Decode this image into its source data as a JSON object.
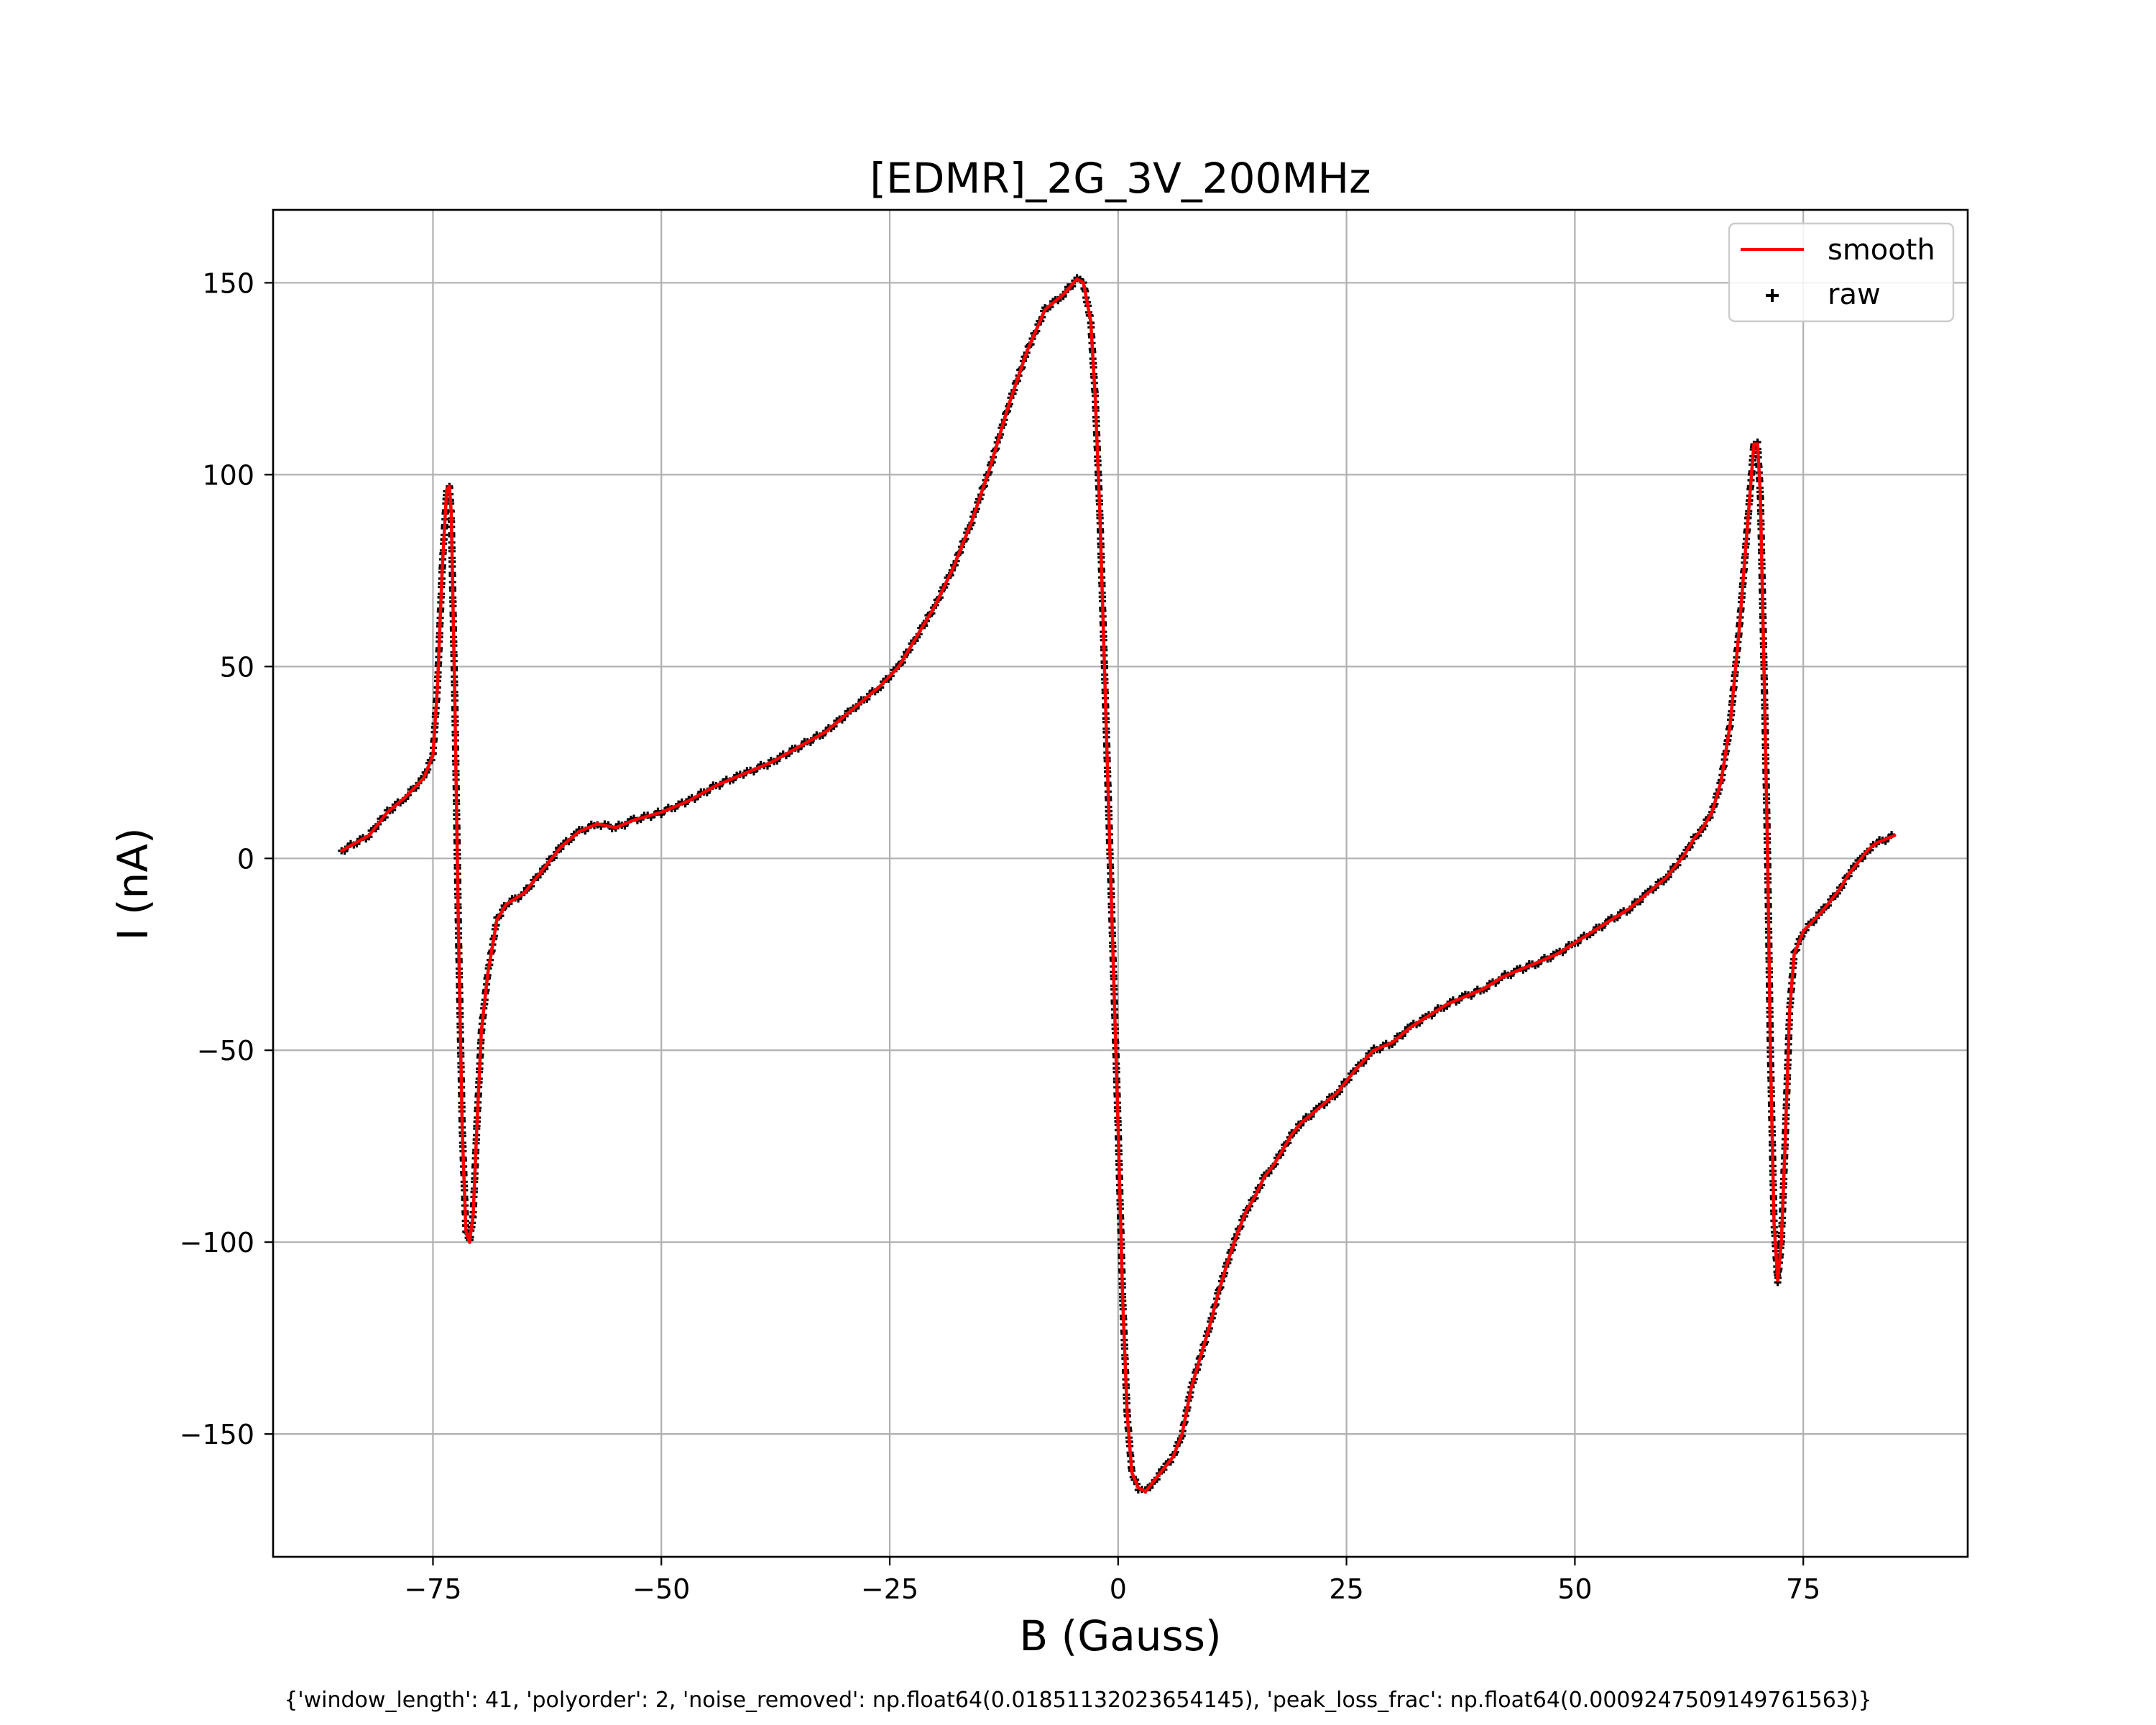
{
  "chart_data": {
    "type": "line",
    "title": "[EDMR]_2G_3V_200MHz",
    "xlabel": "B (Gauss)",
    "ylabel": "I (nA)",
    "xlim": [
      -92.5,
      93
    ],
    "ylim": [
      -182,
      169
    ],
    "xticks": [
      -75,
      -50,
      -25,
      0,
      25,
      50,
      75
    ],
    "xtick_labels": [
      "−75",
      "−50",
      "−25",
      "0",
      "25",
      "50",
      "75"
    ],
    "yticks": [
      -150,
      -100,
      -50,
      0,
      50,
      100,
      150
    ],
    "ytick_labels": [
      "−150",
      "−100",
      "−50",
      "0",
      "50",
      "100",
      "150"
    ],
    "grid": true,
    "legend": "top-right",
    "series": [
      {
        "name": "smooth",
        "style": "line",
        "color": "#ff0000",
        "points": [
          [
            -85,
            2
          ],
          [
            -82,
            6
          ],
          [
            -80,
            12
          ],
          [
            -78,
            16
          ],
          [
            -76,
            21
          ],
          [
            -75,
            27
          ],
          [
            -74.5,
            45
          ],
          [
            -74,
            75
          ],
          [
            -73.5,
            96
          ],
          [
            -73.2,
            97
          ],
          [
            -73,
            90
          ],
          [
            -72.6,
            40
          ],
          [
            -72.2,
            -20
          ],
          [
            -71.8,
            -70
          ],
          [
            -71.4,
            -97
          ],
          [
            -71,
            -100
          ],
          [
            -70.6,
            -93
          ],
          [
            -70.2,
            -70
          ],
          [
            -69.7,
            -45
          ],
          [
            -69,
            -30
          ],
          [
            -68,
            -16
          ],
          [
            -67,
            -12
          ],
          [
            -65,
            -9
          ],
          [
            -63,
            -3
          ],
          [
            -61,
            3
          ],
          [
            -59,
            7
          ],
          [
            -57,
            9
          ],
          [
            -55,
            8
          ],
          [
            -53,
            10
          ],
          [
            -50,
            12
          ],
          [
            -47,
            15
          ],
          [
            -44,
            19
          ],
          [
            -41,
            22
          ],
          [
            -38,
            25
          ],
          [
            -35,
            29
          ],
          [
            -32,
            33
          ],
          [
            -29,
            39
          ],
          [
            -26,
            45
          ],
          [
            -24,
            50
          ],
          [
            -22,
            58
          ],
          [
            -20,
            66
          ],
          [
            -18,
            76
          ],
          [
            -16,
            88
          ],
          [
            -14,
            102
          ],
          [
            -12,
            118
          ],
          [
            -10,
            132
          ],
          [
            -8,
            143
          ],
          [
            -6,
            147
          ],
          [
            -4.5,
            151
          ],
          [
            -3.8,
            150
          ],
          [
            -3,
            140
          ],
          [
            -2.5,
            120
          ],
          [
            -2,
            90
          ],
          [
            -1.5,
            50
          ],
          [
            -1,
            10
          ],
          [
            -0.5,
            -30
          ],
          [
            0,
            -70
          ],
          [
            0.5,
            -115
          ],
          [
            1,
            -145
          ],
          [
            1.5,
            -160
          ],
          [
            2.2,
            -164
          ],
          [
            3,
            -165
          ],
          [
            4,
            -162
          ],
          [
            5,
            -159
          ],
          [
            6,
            -156
          ],
          [
            7,
            -150
          ],
          [
            8,
            -138
          ],
          [
            9,
            -130
          ],
          [
            10,
            -122
          ],
          [
            11,
            -113
          ],
          [
            12,
            -105
          ],
          [
            13,
            -98
          ],
          [
            14,
            -92
          ],
          [
            15,
            -88
          ],
          [
            16,
            -83
          ],
          [
            17,
            -80
          ],
          [
            18,
            -76
          ],
          [
            19,
            -72
          ],
          [
            20,
            -69
          ],
          [
            22,
            -65
          ],
          [
            24,
            -61
          ],
          [
            26,
            -55
          ],
          [
            28,
            -50
          ],
          [
            30,
            -48
          ],
          [
            32,
            -44
          ],
          [
            34,
            -41
          ],
          [
            36,
            -38
          ],
          [
            38,
            -36
          ],
          [
            40,
            -34
          ],
          [
            42,
            -31
          ],
          [
            44,
            -29
          ],
          [
            46,
            -27
          ],
          [
            48,
            -25
          ],
          [
            50,
            -22
          ],
          [
            52,
            -19
          ],
          [
            54,
            -16
          ],
          [
            56,
            -13
          ],
          [
            58,
            -9
          ],
          [
            60,
            -5
          ],
          [
            62,
            1
          ],
          [
            63,
            5
          ],
          [
            64,
            8
          ],
          [
            65,
            12
          ],
          [
            66,
            20
          ],
          [
            67,
            35
          ],
          [
            68,
            60
          ],
          [
            69,
            90
          ],
          [
            69.6,
            108
          ],
          [
            70,
            108
          ],
          [
            70.3,
            95
          ],
          [
            70.7,
            50
          ],
          [
            71.1,
            0
          ],
          [
            71.4,
            -50
          ],
          [
            71.8,
            -95
          ],
          [
            72.2,
            -110
          ],
          [
            72.6,
            -100
          ],
          [
            73,
            -75
          ],
          [
            73.5,
            -40
          ],
          [
            74,
            -25
          ],
          [
            75,
            -19
          ],
          [
            77,
            -14
          ],
          [
            79,
            -8
          ],
          [
            80,
            -4
          ],
          [
            81,
            -1
          ],
          [
            82,
            2
          ],
          [
            83,
            4
          ],
          [
            85,
            6
          ]
        ]
      },
      {
        "name": "raw",
        "style": "marker",
        "marker": "+",
        "color": "#000000"
      }
    ]
  },
  "footnote": "{'window_length': 41, 'polyorder': 2, 'noise_removed': np.float64(0.01851132023654145), 'peak_loss_frac': np.float64(0.0009247509149761563)}"
}
